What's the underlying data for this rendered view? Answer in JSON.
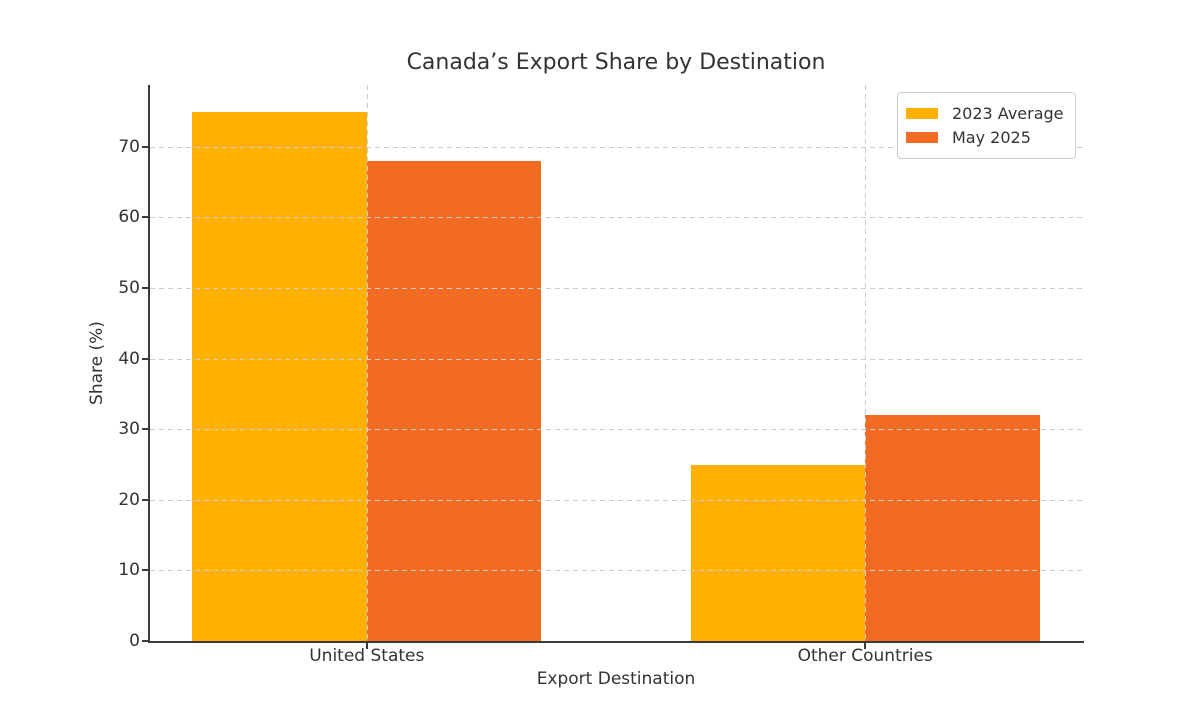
{
  "chart_data": {
    "type": "bar",
    "title": "Canada’s Export Share by Destination",
    "xlabel": "Export Destination",
    "ylabel": "Share (%)",
    "categories": [
      "United States",
      "Other Countries"
    ],
    "series": [
      {
        "name": "2023 Average",
        "color": "#FFB000",
        "values": [
          75,
          25
        ]
      },
      {
        "name": "May 2025",
        "color": "#F26B22",
        "values": [
          68,
          32
        ]
      }
    ],
    "yticks": [
      0,
      10,
      20,
      30,
      40,
      50,
      60,
      70
    ],
    "ylim": [
      0,
      78.75
    ],
    "bar_group_width": 0.7,
    "grid": true,
    "grid_style": "dashed",
    "grid_above_bars": true,
    "legend_position": "upper right",
    "background": "#ffffff"
  }
}
